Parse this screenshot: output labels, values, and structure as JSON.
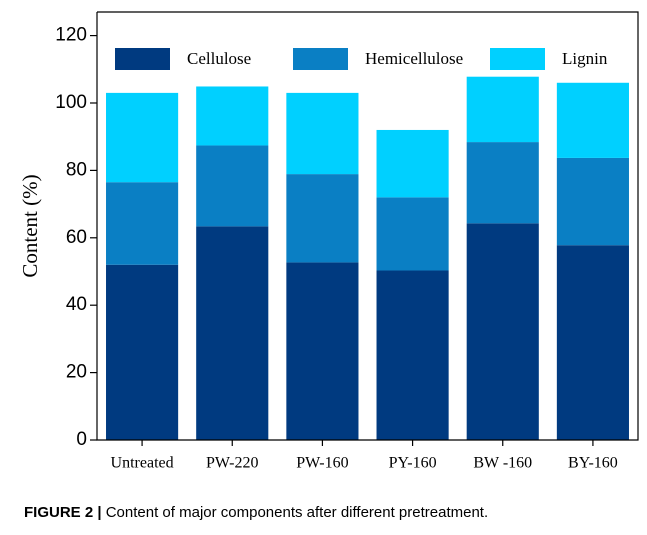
{
  "chart_data": {
    "type": "stacked_bar",
    "categories": [
      "Untreated",
      "PW-220",
      "PW-160",
      "PY-160",
      "BW -160",
      "BY-160"
    ],
    "series": [
      {
        "name": "Cellulose",
        "color": "#003a80",
        "values": [
          52,
          63.4,
          52.7,
          50.3,
          64.3,
          57.8
        ]
      },
      {
        "name": "Hemicellulose",
        "color": "#0a7fc4",
        "values": [
          24.5,
          24,
          26.2,
          21.7,
          24.1,
          25.9
        ]
      },
      {
        "name": "Lignin",
        "color": "#00d0ff",
        "values": [
          26.5,
          17.5,
          24.1,
          20,
          19.4,
          22.3
        ]
      }
    ],
    "ylabel": "Content (%)",
    "ylim": [
      0,
      127
    ],
    "yticks": [
      0,
      20,
      40,
      60,
      80,
      100,
      120
    ],
    "caption_label": "FIGURE 2 |",
    "caption_text": "Content of major components after different pretreatment."
  }
}
